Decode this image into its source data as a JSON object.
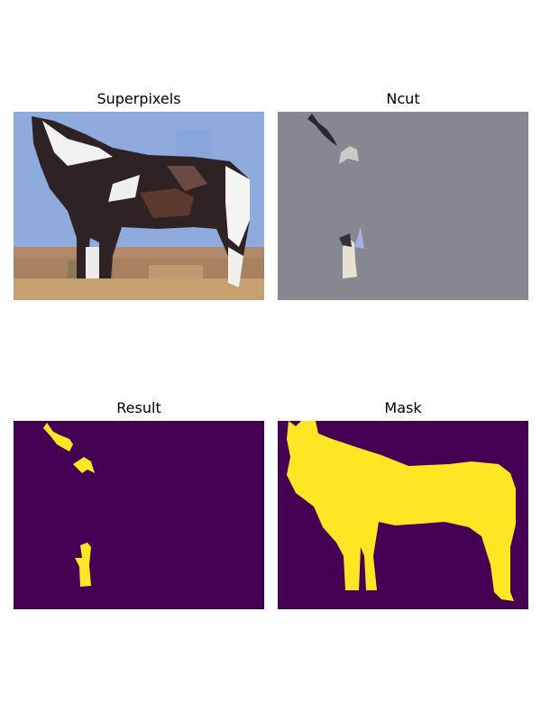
{
  "panels": {
    "superpixels": {
      "title": "Superpixels"
    },
    "ncut": {
      "title": "Ncut"
    },
    "result": {
      "title": "Result"
    },
    "mask": {
      "title": "Mask"
    }
  },
  "colors": {
    "sky": "#90aee0",
    "ground": "#a88260",
    "ncut_background": "#868791",
    "mask_background": "#440154",
    "mask_foreground": "#fde725",
    "mask_edge": "#21918c"
  }
}
